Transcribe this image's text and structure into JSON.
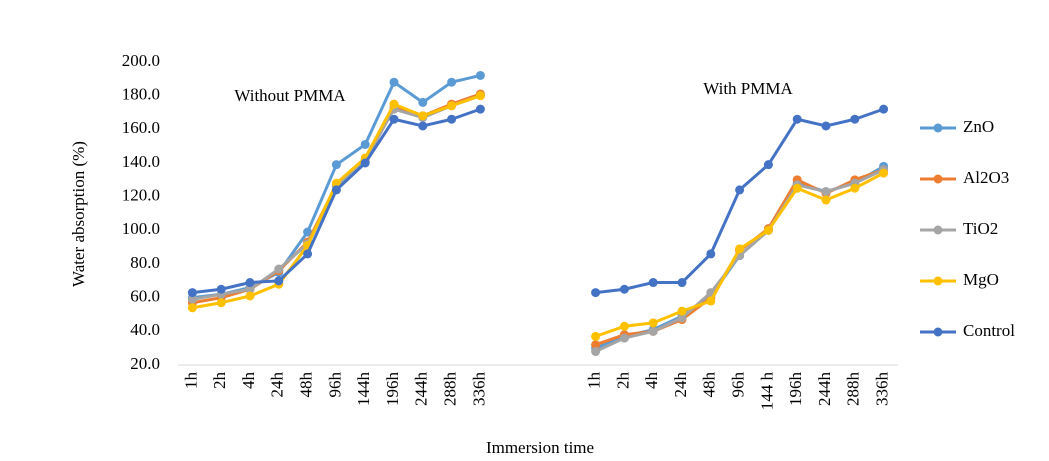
{
  "chart_data": {
    "type": "line",
    "annotations": [
      "Without PMMA",
      "With PMMA"
    ],
    "x_label": "Immersion time",
    "y_label": "Water absorption (%)",
    "categories": [
      "1h",
      "2h",
      "4h",
      "24h",
      "48h",
      "96h",
      "144h",
      "196h",
      "244h",
      "288h",
      "336h",
      null,
      null,
      null,
      "1h",
      "2h",
      "4h",
      "24h",
      "48h",
      "96h",
      "144 h",
      "196h",
      "244h",
      "288h",
      "336h"
    ],
    "series": [
      {
        "name": "ZnO",
        "color": "#5b9bd5",
        "values": [
          60,
          62,
          66,
          75,
          99,
          139,
          151,
          188,
          176,
          188,
          192,
          null,
          null,
          null,
          30,
          37,
          41,
          49,
          61,
          85,
          100,
          128,
          123,
          128,
          138
        ]
      },
      {
        "name": "Al2O3",
        "color": "#ed7d31",
        "values": [
          57,
          60,
          65,
          76,
          93,
          127,
          141,
          173,
          168,
          175,
          181,
          null,
          null,
          null,
          32,
          38,
          40,
          47,
          60,
          88,
          101,
          130,
          122,
          130,
          136
        ]
      },
      {
        "name": "TiO2",
        "color": "#a5a5a5",
        "values": [
          59,
          62,
          65,
          77,
          92,
          126,
          142,
          172,
          167,
          174,
          180,
          null,
          null,
          null,
          28,
          36,
          40,
          48,
          63,
          85,
          100,
          127,
          123,
          128,
          136
        ]
      },
      {
        "name": "MgO",
        "color": "#ffc000",
        "values": [
          54,
          57,
          61,
          68,
          91,
          128,
          143,
          175,
          168,
          174,
          180,
          null,
          null,
          null,
          37,
          43,
          45,
          52,
          58,
          89,
          100,
          125,
          118,
          125,
          134
        ]
      },
      {
        "name": "Control",
        "color": "#4472c4",
        "values": [
          63,
          65,
          69,
          70,
          86,
          124,
          140,
          166,
          162,
          166,
          172,
          null,
          null,
          null,
          63,
          65,
          69,
          69,
          86,
          124,
          139,
          166,
          162,
          166,
          172
        ]
      }
    ],
    "ylim": [
      20,
      200
    ],
    "yticks": [
      {
        "value": 20,
        "label": "20.0"
      },
      {
        "value": 40,
        "label": "40.0"
      },
      {
        "value": 60,
        "label": "60.0"
      },
      {
        "value": 80,
        "label": "80.0"
      },
      {
        "value": 100,
        "label": "100.0"
      },
      {
        "value": 120,
        "label": "120.0"
      },
      {
        "value": 140,
        "label": "140.0"
      },
      {
        "value": 160,
        "label": "160.0"
      },
      {
        "value": 180,
        "label": "180.0"
      },
      {
        "value": 200,
        "label": "200.0"
      }
    ],
    "grid": false,
    "legend": "right"
  }
}
